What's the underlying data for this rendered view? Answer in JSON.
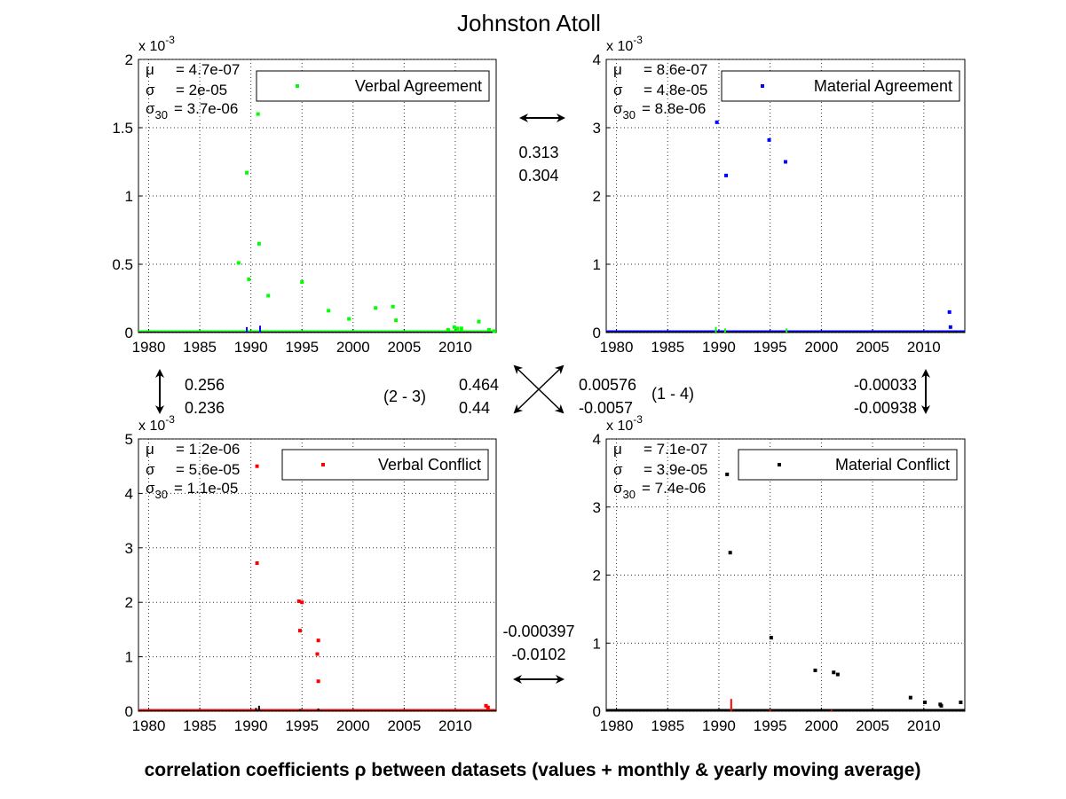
{
  "title": "Johnston Atoll",
  "footer": "correlation coefficients ρ between datasets (values + monthly & yearly moving average)",
  "stats_labels": {
    "mu": "μ",
    "sigma": "σ",
    "sigma30_base": "σ",
    "sigma30_sub": "30"
  },
  "scale_prefix": "x 10",
  "scale_exponent": "-3",
  "correlations": {
    "top": [
      "0.313",
      "0.304"
    ],
    "left": [
      "0.256",
      "0.236"
    ],
    "right": [
      "-0.00033",
      "-0.00938"
    ],
    "bottom": [
      "-0.000397",
      "-0.0102"
    ],
    "diag_23": [
      "0.464",
      "0.44"
    ],
    "diag_14": [
      "0.00576",
      "-0.0057"
    ],
    "label_23": "(2 - 3)",
    "label_14": "(1 - 4)"
  },
  "chart_data": [
    {
      "type": "scatter",
      "legend": "Verbal Agreement",
      "legend_location": "top-right",
      "color": "#00ff00",
      "xlim": [
        1979,
        2014
      ],
      "ylim": [
        0,
        2
      ],
      "xticks": [
        "1980",
        "1985",
        "1990",
        "1995",
        "2000",
        "2005",
        "2010"
      ],
      "yticks": [
        "0",
        "0.5",
        "1",
        "1.5",
        "2"
      ],
      "scale": "x 10^-3",
      "grid": true,
      "stats": {
        "mu": "= 4.7e-07",
        "sigma": "= 2e-05",
        "sigma30": "= 3.7e-06"
      },
      "points": [
        [
          1988.8,
          0.51
        ],
        [
          1989.6,
          1.17
        ],
        [
          1989.8,
          0.39
        ],
        [
          1990.7,
          1.6
        ],
        [
          1990.8,
          0.65
        ],
        [
          1991.7,
          0.27
        ],
        [
          1995.0,
          0.37
        ],
        [
          1997.6,
          0.16
        ],
        [
          1999.6,
          0.1
        ],
        [
          2002.2,
          0.18
        ],
        [
          2003.9,
          0.19
        ],
        [
          2004.2,
          0.09
        ],
        [
          2009.3,
          0.02
        ],
        [
          2009.9,
          0.04
        ],
        [
          2010.2,
          0.03
        ],
        [
          2010.6,
          0.03
        ],
        [
          2012.3,
          0.08
        ],
        [
          2013.3,
          0.02
        ],
        [
          2013.8,
          0.01
        ]
      ],
      "overlay": {
        "color": "#0000ff",
        "points": [
          [
            1989.6,
            0.04
          ],
          [
            1990.9,
            0.05
          ]
        ]
      }
    },
    {
      "type": "scatter",
      "legend": "Material Agreement",
      "legend_location": "top-right",
      "color": "#0000ff",
      "xlim": [
        1979,
        2014
      ],
      "ylim": [
        0,
        4
      ],
      "xticks": [
        "1980",
        "1985",
        "1990",
        "1995",
        "2000",
        "2005",
        "2010"
      ],
      "yticks": [
        "0",
        "1",
        "2",
        "3",
        "4"
      ],
      "scale": "x 10^-3",
      "grid": true,
      "stats": {
        "mu": "= 8.6e-07",
        "sigma": "= 4.8e-05",
        "sigma30": "= 8.8e-06"
      },
      "points": [
        [
          1989.8,
          3.08
        ],
        [
          1990.7,
          2.3
        ],
        [
          1994.9,
          2.82
        ],
        [
          1996.5,
          2.5
        ],
        [
          2012.5,
          0.3
        ],
        [
          2012.6,
          0.08
        ]
      ],
      "overlay": {
        "color": "#00ff00",
        "points": [
          [
            1989.7,
            0.08
          ],
          [
            1990.6,
            0.06
          ],
          [
            1996.6,
            0.06
          ]
        ]
      }
    },
    {
      "type": "scatter",
      "legend": "Verbal Conflict",
      "legend_location": "top-right",
      "color": "#ff0000",
      "xlim": [
        1979,
        2014
      ],
      "ylim": [
        0,
        5
      ],
      "xticks": [
        "1980",
        "1985",
        "1990",
        "1995",
        "2000",
        "2005",
        "2010"
      ],
      "yticks": [
        "0",
        "1",
        "2",
        "3",
        "4",
        "5"
      ],
      "scale": "x 10^-3",
      "grid": true,
      "stats": {
        "mu": "= 1.2e-06",
        "sigma": "= 5.6e-05",
        "sigma30": "= 1.1e-05"
      },
      "points": [
        [
          1990.6,
          4.5
        ],
        [
          1990.6,
          2.72
        ],
        [
          1994.7,
          2.02
        ],
        [
          1995.0,
          2.0
        ],
        [
          1994.8,
          1.48
        ],
        [
          1996.6,
          1.3
        ],
        [
          1996.5,
          1.05
        ],
        [
          1996.6,
          0.55
        ],
        [
          2013.0,
          0.1
        ],
        [
          2013.2,
          0.07
        ]
      ],
      "overlay": {
        "color": "#000000",
        "points": [
          [
            1990.5,
            0.06
          ],
          [
            1990.8,
            0.1
          ],
          [
            1994.8,
            0.04
          ],
          [
            1996.6,
            0.05
          ]
        ]
      }
    },
    {
      "type": "scatter",
      "legend": "Material Conflict",
      "legend_location": "top-right",
      "color": "#000000",
      "xlim": [
        1979,
        2014
      ],
      "ylim": [
        0,
        4
      ],
      "xticks": [
        "1980",
        "1985",
        "1990",
        "1995",
        "2000",
        "2005",
        "2010"
      ],
      "yticks": [
        "0",
        "1",
        "2",
        "3",
        "4"
      ],
      "scale": "x 10^-3",
      "grid": true,
      "stats": {
        "mu": "= 7.1e-07",
        "sigma": "= 3.9e-05",
        "sigma30": "= 7.4e-06"
      },
      "points": [
        [
          1990.8,
          3.48
        ],
        [
          1991.1,
          2.33
        ],
        [
          1995.1,
          1.08
        ],
        [
          1999.4,
          0.6
        ],
        [
          2001.2,
          0.57
        ],
        [
          2001.6,
          0.54
        ],
        [
          2008.7,
          0.2
        ],
        [
          2010.1,
          0.13
        ],
        [
          2011.6,
          0.1
        ],
        [
          2011.7,
          0.08
        ],
        [
          2013.6,
          0.13
        ]
      ],
      "overlay": {
        "color": "#ff0000",
        "points": [
          [
            1991.2,
            0.18
          ],
          [
            1995.0,
            0.03
          ],
          [
            2001.0,
            0.02
          ]
        ]
      }
    }
  ]
}
